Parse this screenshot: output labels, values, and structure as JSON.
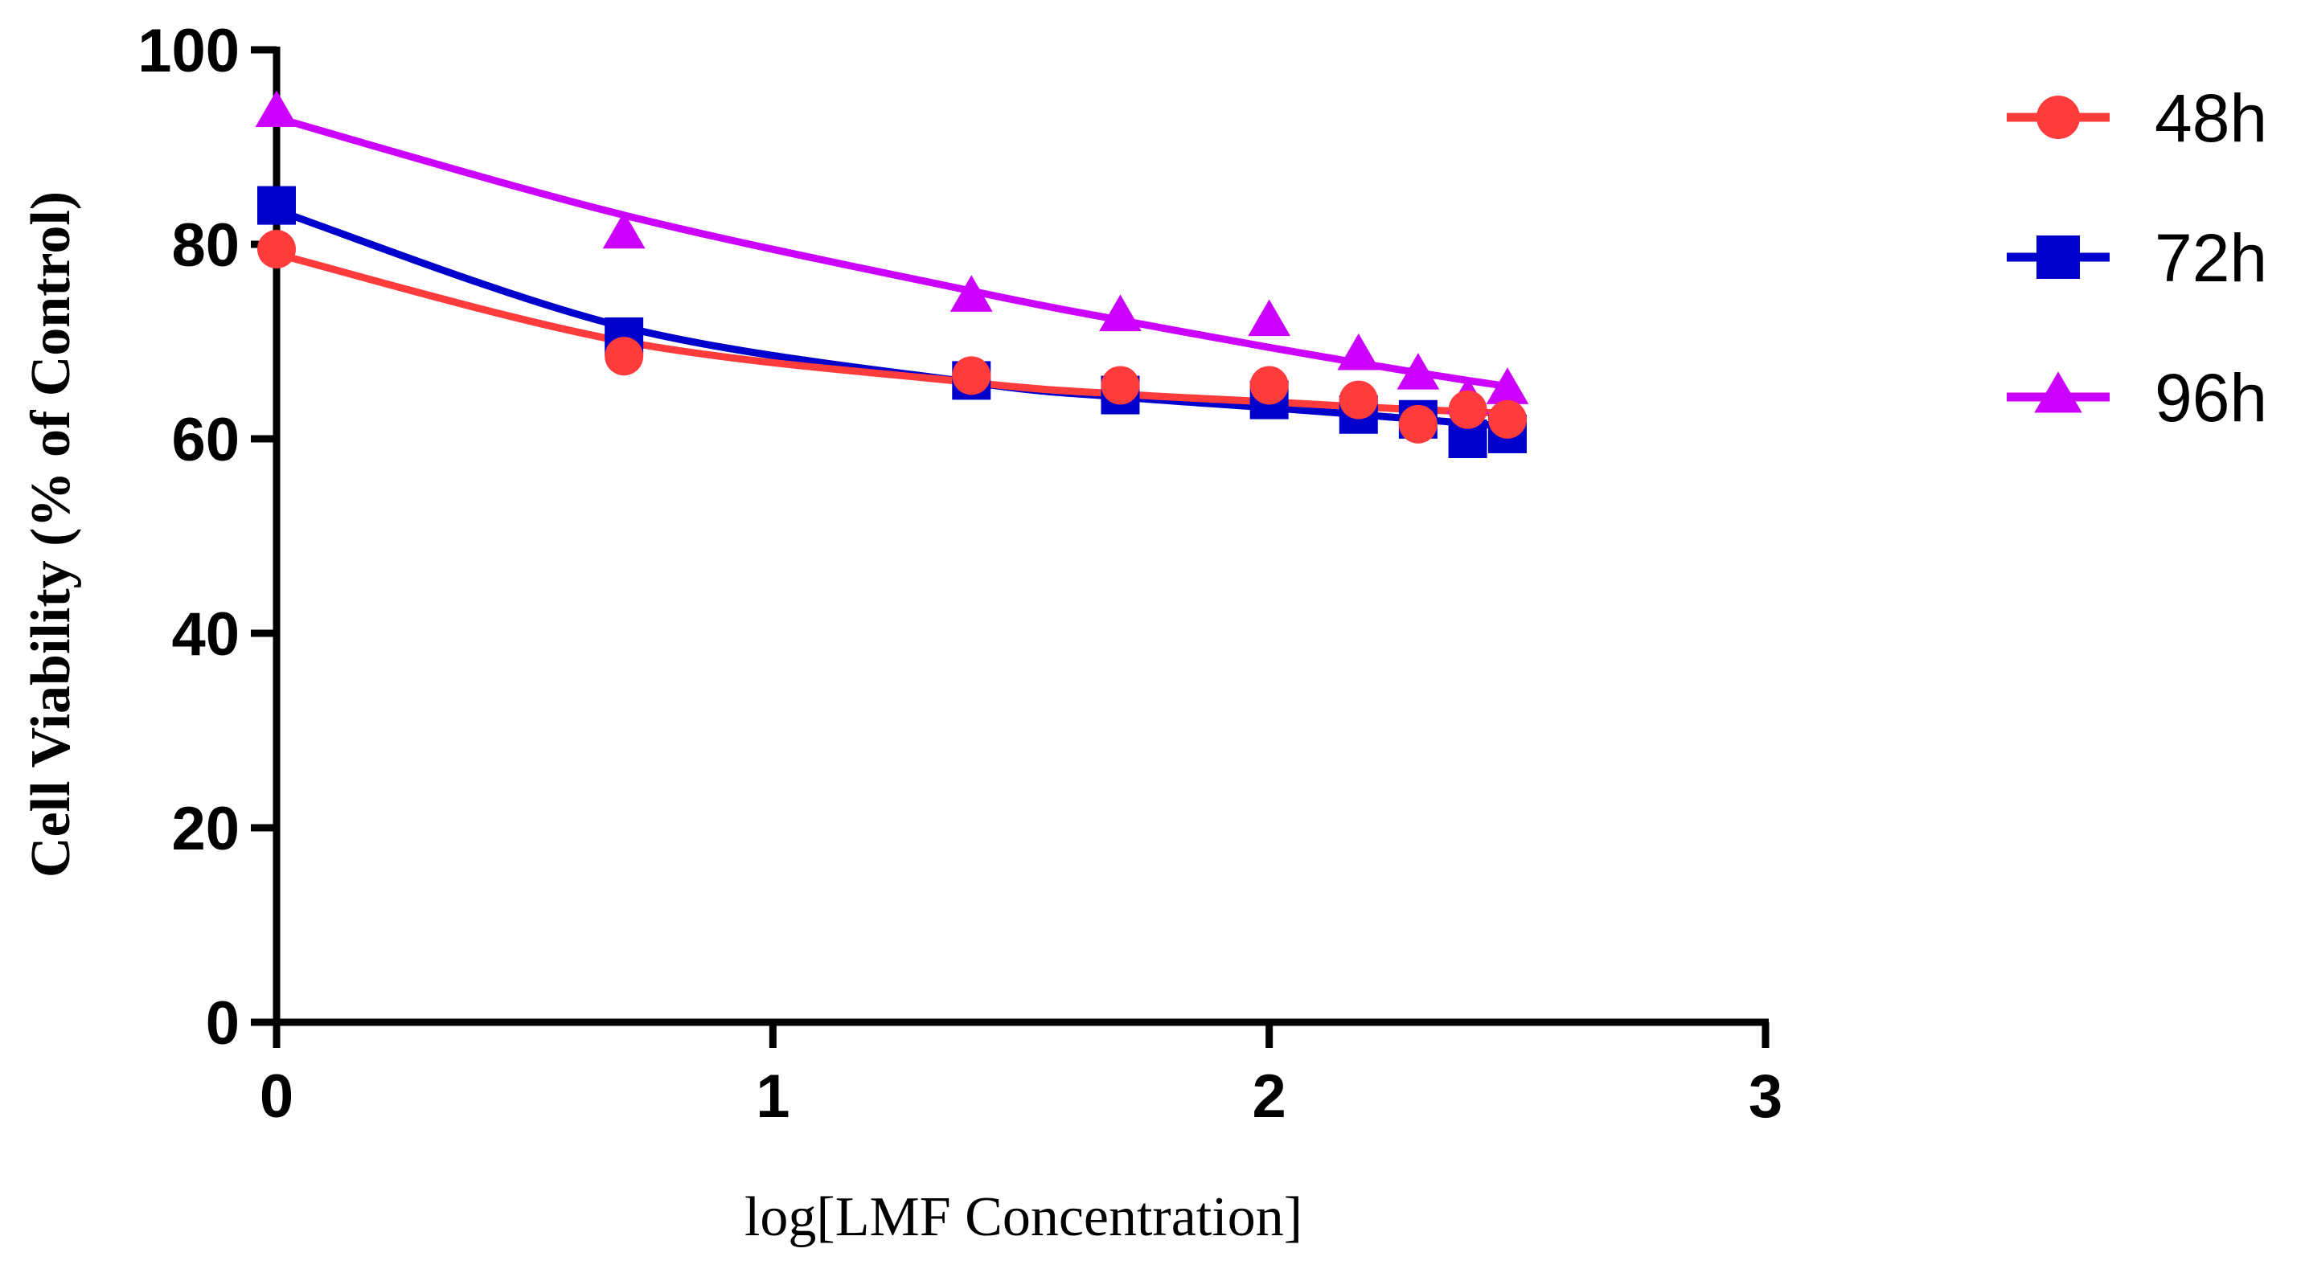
{
  "chart_data": {
    "type": "scatter",
    "xlabel": "log[LMF Concentration]",
    "ylabel": "Cell Viability (% of Control)",
    "xlim": [
      0,
      3
    ],
    "ylim": [
      0,
      100
    ],
    "xticks": [
      "0",
      "1",
      "2",
      "3"
    ],
    "yticks": [
      "0",
      "20",
      "40",
      "60",
      "80",
      "100"
    ],
    "grid": false,
    "legend_position": "top-right",
    "series": [
      {
        "name": "48h",
        "color": "#ff3b3b",
        "marker": "circle",
        "x": [
          0,
          0.7,
          1.4,
          1.7,
          2.0,
          2.18,
          2.3,
          2.4,
          2.48
        ],
        "y": [
          79.5,
          68.5,
          66.5,
          65.5,
          65.5,
          64.0,
          61.5,
          63.0,
          62.0
        ],
        "fit_y": [
          79,
          70,
          65.8,
          64.6,
          63.8,
          63.3,
          63.0,
          62.8,
          62.6
        ]
      },
      {
        "name": "72h",
        "color": "#0000cc",
        "marker": "square",
        "x": [
          0,
          0.7,
          1.4,
          1.7,
          2.0,
          2.18,
          2.3,
          2.4,
          2.48
        ],
        "y": [
          84.0,
          70.5,
          66.0,
          64.5,
          64.0,
          62.5,
          62.0,
          60.0,
          60.5
        ],
        "fit_y": [
          83.5,
          71.5,
          65.8,
          64.3,
          63.2,
          62.5,
          62.0,
          61.6,
          61.3
        ]
      },
      {
        "name": "96h",
        "color": "#cc00ff",
        "marker": "triangle",
        "x": [
          0,
          0.7,
          1.4,
          1.7,
          2.0,
          2.18,
          2.3,
          2.4,
          2.48
        ],
        "y": [
          93.5,
          81.0,
          74.5,
          72.5,
          72.0,
          68.5,
          66.5,
          64.0,
          65.0
        ],
        "fit_y": [
          93,
          83,
          75.2,
          72.2,
          69.4,
          67.8,
          66.8,
          66.0,
          65.4
        ]
      }
    ]
  }
}
